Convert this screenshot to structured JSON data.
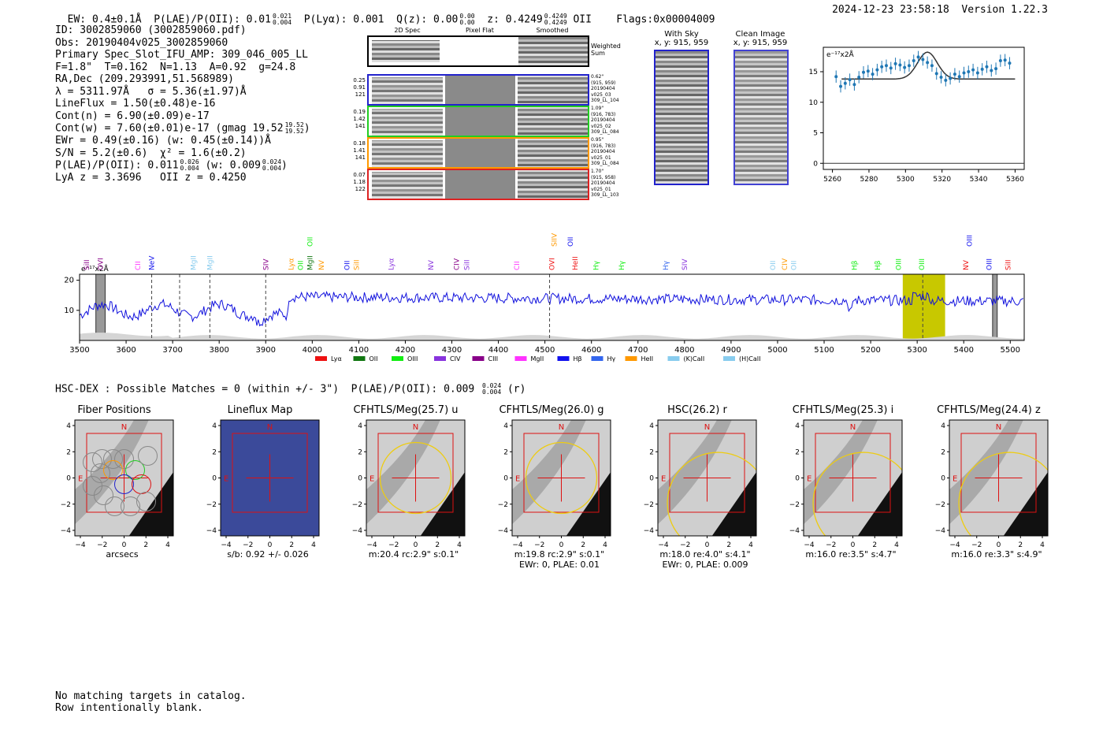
{
  "header": {
    "left": "EW: 0.4±0.1Å  P(LAE)/P(OII): 0.01",
    "plae_hi": "0.021",
    "plae_lo": "0.004",
    "plya": "P(Lyα): 0.001  Q(z): 0.00",
    "qz_hi": "0.00",
    "qz_lo": "0.00",
    "z": "z: 0.4249",
    "z_hi": "0.4249",
    "z_lo": "0.4249",
    "z_tail": "OII    Flags:0x00004009",
    "right": "2024-12-23 23:58:18  Version 1.22.3"
  },
  "info": {
    "l1": "ID: 3002859060 (3002859060.pdf)",
    "l2": "Obs: 20190404v025_3002859060",
    "l3": "Primary Spec_Slot_IFU_AMP: 309_046_005_LL",
    "l4": "F=1.8\"  T=0.162  N=1.13  A=0.92  g=24.8",
    "l5": "RA,Dec (209.293991,51.568989)",
    "l6": "λ = 5311.97Å   σ = 5.36(±1.97)Å",
    "l7": "LineFlux = 1.50(±0.48)e-16",
    "l8": "Cont(n) = 6.90(±0.09)e-17",
    "l9": "Cont(w) = 7.60(±0.01)e-17 (gmag 19.52",
    "l9_hi": "19.52",
    "l9_lo": "19.52",
    "l9_tail": ")",
    "l10": "EWr = 0.49(±0.16) (w: 0.45(±0.14))Å",
    "l11": "S/N = 5.2(±0.6)  χ² = 1.6(±0.2)",
    "l12": "P(LAE)/P(OII): 0.011",
    "l12_hi": "0.026",
    "l12_lo": "0.004",
    "l12_mid": " (w: 0.009",
    "l12_hi2": "0.024",
    "l12_lo2": "0.004",
    "l12_tail": ")",
    "l13": "LyA z = 3.3696   OII z = 0.4250"
  },
  "cutouts": {
    "col1": "2D Spec",
    "col2": "Pixel Flat",
    "col3": "Smoothed",
    "weighted": "Weighted Sum",
    "rows": [
      {
        "color": "#2222cc",
        "left": [
          "0.25",
          "0.91",
          "121"
        ],
        "right": [
          "0.62\"",
          "(915, 959)",
          "20190404",
          "v025_03",
          "309_LL_104"
        ]
      },
      {
        "color": "#22cc22",
        "left": [
          "0.19",
          "1.42",
          "141"
        ],
        "right": [
          "1.09\"",
          "(916, 783)",
          "20190404",
          "v025_02",
          "309_LL_084"
        ]
      },
      {
        "color": "#ff9900",
        "left": [
          "0.18",
          "1.41",
          "141"
        ],
        "right": [
          "0.95\"",
          "(916, 783)",
          "20190404",
          "v025_01",
          "309_LL_084"
        ]
      },
      {
        "color": "#dd2222",
        "left": [
          "0.07",
          "1.18",
          "122"
        ],
        "right": [
          "1.70\"",
          "(915, 958)",
          "20190404",
          "v025_01",
          "309_LL_103"
        ]
      }
    ],
    "with_sky": "With Sky",
    "with_sky_xy": "x, y: 915, 959",
    "clean": "Clean Image",
    "clean_xy": "x, y: 915, 959"
  },
  "fit_plot": {
    "ylabel": "e⁻¹⁷x2Å",
    "xticks": [
      "5260",
      "5280",
      "5300",
      "5320",
      "5340",
      "5360"
    ],
    "yticks": [
      "0",
      "5",
      "10",
      "15"
    ]
  },
  "spectrum": {
    "ylabel": "e⁻¹⁷x2Å",
    "xticks": [
      "3500",
      "3600",
      "3700",
      "3800",
      "3900",
      "4000",
      "4100",
      "4200",
      "4300",
      "4400",
      "4500",
      "4600",
      "4700",
      "4800",
      "4900",
      "5000",
      "5100",
      "5200",
      "5300",
      "5400",
      "5500"
    ],
    "yticks": [
      "10",
      "20"
    ],
    "legend": [
      {
        "label": "Lyα",
        "color": "#ee1111"
      },
      {
        "label": "OII",
        "color": "#117711"
      },
      {
        "label": "OIII",
        "color": "#11ee11"
      },
      {
        "label": "CIV",
        "color": "#8833dd"
      },
      {
        "label": "CIII",
        "color": "#880088"
      },
      {
        "label": "MgII",
        "color": "#ff33ff"
      },
      {
        "label": "Hβ",
        "color": "#1111ee"
      },
      {
        "label": "Hγ",
        "color": "#3366ee"
      },
      {
        "label": "HeII",
        "color": "#ff9900"
      },
      {
        "label": "(K)CaII",
        "color": "#88ccee"
      },
      {
        "label": "(H)CaII",
        "color": "#88ccee"
      }
    ],
    "lines": [
      {
        "label": "SiII",
        "color": "#880088",
        "x": 3515
      },
      {
        "label": "OVI",
        "color": "#880088",
        "x": 3545
      },
      {
        "label": "CII",
        "color": "#ff33ff",
        "x": 3625
      },
      {
        "label": "NeV",
        "color": "#1111ee",
        "x": 3655
      },
      {
        "label": "MgII",
        "color": "#88ccee",
        "x": 3745
      },
      {
        "label": "MgII",
        "color": "#88ccee",
        "x": 3780
      },
      {
        "label": "SIV",
        "color": "#880088",
        "x": 3900
      },
      {
        "label": "Lyα",
        "color": "#ff9900",
        "x": 3955
      },
      {
        "label": "OII",
        "color": "#11ee11",
        "x": 3975
      },
      {
        "label": "MgII",
        "color": "#117711",
        "x": 3995
      },
      {
        "label": "NV",
        "color": "#ff9900",
        "x": 4020
      },
      {
        "label": "OII",
        "color": "#1111ee",
        "x": 4075
      },
      {
        "label": "SiII",
        "color": "#ff9900",
        "x": 4095
      },
      {
        "label": "Lyα",
        "color": "#8833dd",
        "x": 4170
      },
      {
        "label": "NV",
        "color": "#8833dd",
        "x": 4255
      },
      {
        "label": "CIV",
        "color": "#880088",
        "x": 4310
      },
      {
        "label": "SiII",
        "color": "#8833dd",
        "x": 4332
      },
      {
        "label": "CII",
        "color": "#ff33ff",
        "x": 4440
      },
      {
        "label": "OVI",
        "color": "#ee1111",
        "x": 4515
      },
      {
        "label": "HeII",
        "color": "#ee1111",
        "x": 4565
      },
      {
        "label": "Hγ",
        "color": "#11ee11",
        "x": 4610
      },
      {
        "label": "Hγ",
        "color": "#11ee11",
        "x": 4665
      },
      {
        "label": "Hγ",
        "color": "#3366ee",
        "x": 4760
      },
      {
        "label": "SIV",
        "color": "#8833dd",
        "x": 4800
      },
      {
        "label": "OII",
        "color": "#88ccee",
        "x": 4990
      },
      {
        "label": "CIV",
        "color": "#ff9900",
        "x": 5015
      },
      {
        "label": "OII",
        "color": "#88ccee",
        "x": 5035
      },
      {
        "label": "Hβ",
        "color": "#11ee11",
        "x": 5165
      },
      {
        "label": "Hβ",
        "color": "#11ee11",
        "x": 5215
      },
      {
        "label": "OIII",
        "color": "#11ee11",
        "x": 5260
      },
      {
        "label": "OIII",
        "color": "#11ee11",
        "x": 5310
      },
      {
        "label": "NV",
        "color": "#ee1111",
        "x": 5405
      },
      {
        "label": "OIII",
        "color": "#1111ee",
        "x": 5455
      },
      {
        "label": "SiII",
        "color": "#ee1111",
        "x": 5495
      }
    ],
    "top_lines": [
      {
        "label": "OII",
        "color": "#11ee11",
        "x": 3995
      },
      {
        "label": "SIIV",
        "color": "#ff9900",
        "x": 4520
      },
      {
        "label": "OII",
        "color": "#1111ee",
        "x": 4555
      },
      {
        "label": "OIII",
        "color": "#1111ee",
        "x": 5412
      }
    ]
  },
  "hsc": {
    "line": "HSC-DEX : Possible Matches = 0 (within +/- 3\")  P(LAE)/P(OII): 0.009",
    "hi": "0.024",
    "lo": "0.004",
    "tail": "(r)"
  },
  "stamps": [
    {
      "title": "Fiber Positions",
      "cap1": "arcsecs",
      "cap2": ""
    },
    {
      "title": "Lineflux Map",
      "cap1": "s/b: 0.92 +/- 0.026",
      "cap2": ""
    },
    {
      "title": "CFHTLS/Meg(25.7) u",
      "cap1": "m:20.4 rc:2.9\"  s:0.1\"",
      "cap2": ""
    },
    {
      "title": "CFHTLS/Meg(26.0) g",
      "cap1": "m:19.8 rc:2.9\"  s:0.1\"",
      "cap2": "EWr: 0, PLAE: 0.01"
    },
    {
      "title": "HSC(26.2) r",
      "cap1": "m:18.0  re:4.0\"  s:4.1\"",
      "cap2": "EWr: 0, PLAE: 0.009"
    },
    {
      "title": "CFHTLS/Meg(25.3) i",
      "cap1": "m:16.0  re:3.5\"  s:4.7\"",
      "cap2": ""
    },
    {
      "title": "CFHTLS/Meg(24.4) z",
      "cap1": "m:16.0  re:3.3\"  s:4.9\"",
      "cap2": ""
    }
  ],
  "stamp_axis": {
    "ticks": [
      "4",
      "2",
      "0",
      "−2",
      "−4"
    ],
    "xticks": [
      "−4",
      "−2",
      "0",
      "2",
      "4"
    ],
    "n": "N",
    "e": "E"
  },
  "footer": {
    "l1": "No matching targets in catalog.",
    "l2": "Row intentionally blank."
  }
}
